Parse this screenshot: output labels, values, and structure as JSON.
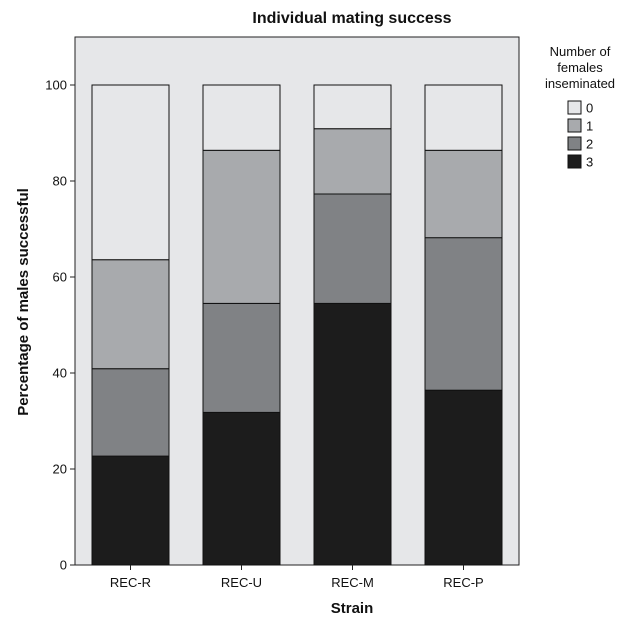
{
  "chart_data": {
    "type": "bar",
    "stacked": true,
    "title": "Individual mating success",
    "xlabel": "Strain",
    "ylabel": "Percentage of males successful",
    "categories": [
      "REC-R",
      "REC-U",
      "REC-M",
      "REC-P"
    ],
    "ylim": [
      0,
      110
    ],
    "yticks": [
      0,
      20,
      40,
      60,
      80,
      100
    ],
    "grid": false,
    "legend_title": "Number of females inseminated",
    "legend_title_lines": [
      "Number of",
      "females",
      "inseminated"
    ],
    "legend_position": "right",
    "series": [
      {
        "name": "3",
        "color": "#1c1c1c",
        "values": [
          22.7,
          31.8,
          54.5,
          36.4
        ]
      },
      {
        "name": "2",
        "color": "#808285",
        "values": [
          18.2,
          22.7,
          22.8,
          31.8
        ]
      },
      {
        "name": "1",
        "color": "#a8aaad",
        "values": [
          22.7,
          31.9,
          13.6,
          18.2
        ]
      },
      {
        "name": "0",
        "color": "#e6e7e9",
        "values": [
          36.4,
          13.6,
          9.1,
          13.6
        ]
      }
    ],
    "legend_order": [
      "0",
      "1",
      "2",
      "3"
    ],
    "plot_background": "#e6e7e9"
  }
}
